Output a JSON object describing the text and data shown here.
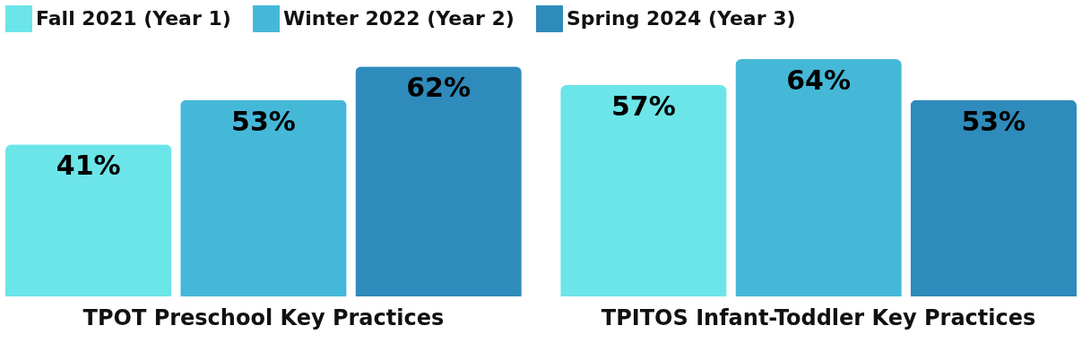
{
  "chart_data": {
    "type": "bar",
    "categories": [
      "TPOT Preschool Key Practices",
      "TPITOS Infant-Toddler Key Practices"
    ],
    "series": [
      {
        "name": "Fall 2021 (Year 1)",
        "color": "#6ce5e8",
        "values": [
          41,
          57
        ],
        "value_labels": [
          "41%",
          "57%"
        ]
      },
      {
        "name": "Winter 2022 (Year 2)",
        "color": "#45b8d8",
        "values": [
          53,
          64
        ],
        "value_labels": [
          "53%",
          "64%"
        ]
      },
      {
        "name": "Spring 2024 (Year 3)",
        "color": "#2e8bbb",
        "values": [
          62,
          53
        ],
        "value_labels": [
          "62%",
          "53%"
        ]
      }
    ],
    "legend": "top",
    "grid": false
  }
}
